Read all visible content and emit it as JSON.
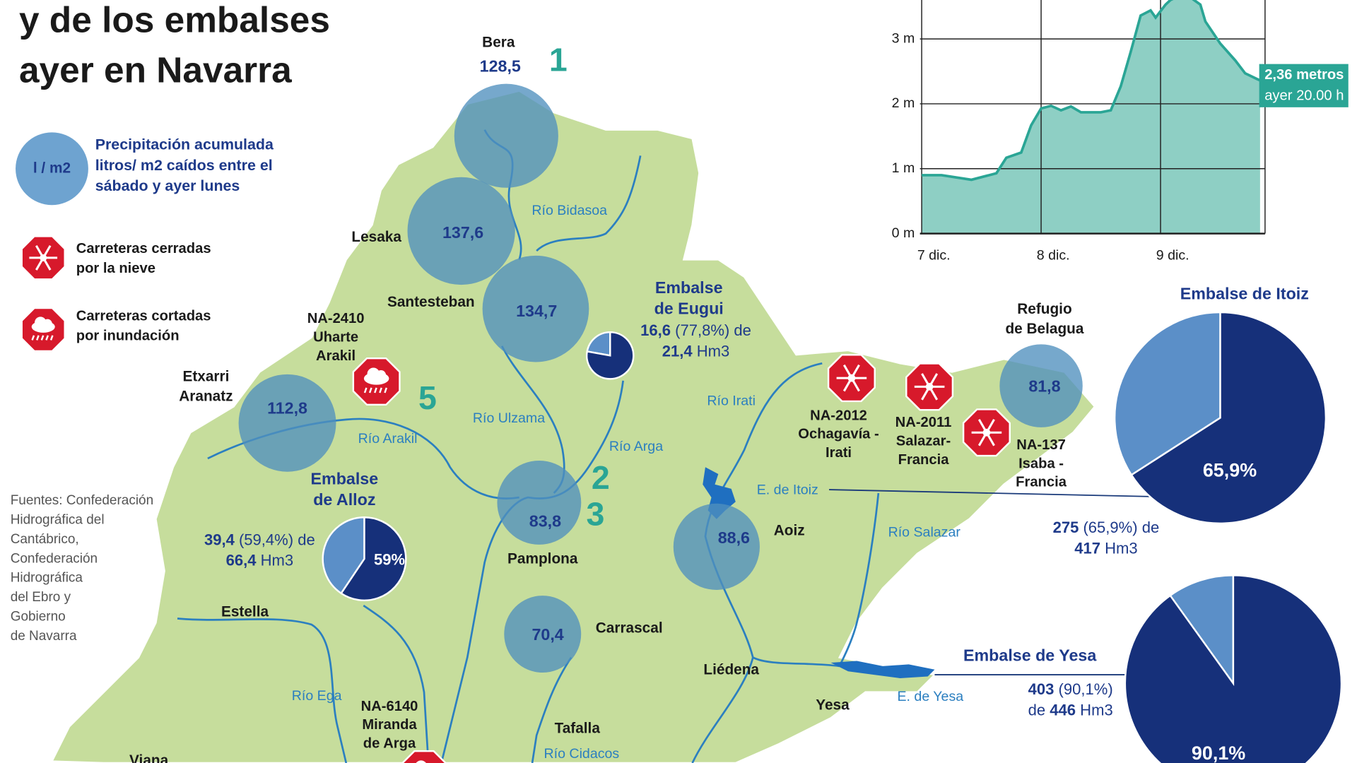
{
  "header": {
    "title_lines": [
      "y de los embalses",
      "ayer en Navarra"
    ]
  },
  "legend": {
    "circle_label": "l / m2",
    "circle_text": [
      "Precipitación acumulada",
      "litros/ m2 caídos entre el",
      "sábado y ayer lunes"
    ],
    "snow_text": [
      "Carreteras cerradas",
      "por la nieve"
    ],
    "flood_text": [
      "Carreteras cortadas",
      "por inundación"
    ]
  },
  "sources": [
    "Fuentes: Confederación",
    "Hidrográfica del",
    "Cantábrico,",
    "Confederación",
    "Hidrográfica",
    "del Ebro y",
    "Gobierno",
    "de Navarra"
  ],
  "stations": [
    {
      "name_lines": [
        "Bera"
      ],
      "value": 128.5,
      "label": "128,5"
    },
    {
      "name_lines": [
        "Lesaka"
      ],
      "value": 137.6,
      "label": "137,6"
    },
    {
      "name_lines": [
        "Santesteban"
      ],
      "value": 134.7,
      "label": "134,7"
    },
    {
      "name_lines": [
        "Etxarri",
        "Aranatz"
      ],
      "value": 112.8,
      "label": "112,8"
    },
    {
      "name_lines": [
        "Pamplona"
      ],
      "value": 83.8,
      "label": "83,8"
    },
    {
      "name_lines": [
        "Aoiz"
      ],
      "value": 88.6,
      "label": "88,6"
    },
    {
      "name_lines": [
        "Carrascal"
      ],
      "value": 70.4,
      "label": "70,4"
    },
    {
      "name_lines": [
        "Refugio",
        "de Belagua"
      ],
      "value": 81.8,
      "label": "81,8"
    }
  ],
  "markers": [
    "1",
    "2",
    "3",
    "5"
  ],
  "roads": [
    {
      "lines": [
        "NA-2410",
        "Uharte",
        "Arakil"
      ],
      "kind": "flood"
    },
    {
      "lines": [
        "NA-2012",
        "Ochagavía -",
        "Irati"
      ],
      "kind": "snow"
    },
    {
      "lines": [
        "NA-2011",
        "Salazar-",
        "Francia"
      ],
      "kind": "snow"
    },
    {
      "lines": [
        "NA-137",
        "Isaba -",
        "Francia"
      ],
      "kind": "snow"
    },
    {
      "lines": [
        "NA-6140",
        "Miranda",
        "de Arga"
      ],
      "kind": "flood"
    }
  ],
  "rivers": [
    "Río Bidasoa",
    "Río Ulzama",
    "Río Arga",
    "Río Arakil",
    "Río Irati",
    "Río Salazar",
    "Río Ega",
    "Río Cidacos",
    "E. de Itoiz",
    "E. de Yesa"
  ],
  "towns": [
    "Estella",
    "Liédena",
    "Yesa",
    "Tafalla",
    "Viana"
  ],
  "reservoirs": [
    {
      "name_lines": [
        "Embalse",
        "de Eugui"
      ],
      "percent": 77.8,
      "lines": [
        [
          {
            "text": "16,6",
            "bold": true
          },
          {
            "text": " (77,8%) de"
          }
        ],
        [
          {
            "text": "21,4",
            "bold": true
          },
          {
            "text": " Hm3"
          }
        ]
      ]
    },
    {
      "name_lines": [
        "Embalse",
        "de Alloz"
      ],
      "percent": 59.4,
      "pie_label": "59%",
      "lines": [
        [
          {
            "text": "39,4",
            "bold": true
          },
          {
            "text": " (59,4%) de"
          }
        ],
        [
          {
            "text": "66,4",
            "bold": true
          },
          {
            "text": " Hm3"
          }
        ]
      ]
    },
    {
      "name_lines": [
        "Embalse de Itoiz"
      ],
      "percent": 65.9,
      "pie_label": "65,9%",
      "lines": [
        [
          {
            "text": "275",
            "bold": true
          },
          {
            "text": " (65,9%) de"
          }
        ],
        [
          {
            "text": "417",
            "bold": true
          },
          {
            "text": " Hm3"
          }
        ]
      ]
    },
    {
      "name_lines": [
        "Embalse de Yesa"
      ],
      "percent": 90.1,
      "pie_label": "90,1%",
      "lines": [
        [
          {
            "text": "403",
            "bold": true
          },
          {
            "text": " (90,1%)"
          }
        ],
        [
          {
            "text": "de "
          },
          {
            "text": "446",
            "bold": true
          },
          {
            "text": " Hm3"
          }
        ]
      ]
    }
  ],
  "chart_data": {
    "type": "line",
    "x": [
      0,
      4,
      10,
      15,
      17,
      20,
      22,
      24,
      26,
      28,
      30,
      32,
      36,
      38,
      40,
      42,
      44,
      46,
      47,
      49,
      50,
      52,
      54,
      56,
      57,
      60,
      63,
      65,
      68
    ],
    "series": [
      {
        "color": "#2aa595",
        "values": [
          0.9,
          0.9,
          0.83,
          0.93,
          1.17,
          1.25,
          1.67,
          1.93,
          1.97,
          1.9,
          1.96,
          1.87,
          1.87,
          1.9,
          2.27,
          2.8,
          3.36,
          3.44,
          3.33,
          3.53,
          3.6,
          3.67,
          3.64,
          3.53,
          3.27,
          2.93,
          2.67,
          2.47,
          2.36
        ]
      }
    ],
    "fill": "#8ecfc4",
    "xlim": [
      0,
      69
    ],
    "xticks": [
      {
        "value": 0,
        "label": "7 dic."
      },
      {
        "value": 24,
        "label": "8 dic."
      },
      {
        "value": 48,
        "label": "9 dic."
      }
    ],
    "ylim": [
      0,
      3.6
    ],
    "yticks": [
      {
        "value": 0,
        "label": "0 m"
      },
      {
        "value": 1,
        "label": "1 m"
      },
      {
        "value": 2,
        "label": "2 m"
      },
      {
        "value": 3,
        "label": "3 m"
      }
    ],
    "grid": true,
    "annotation": [
      "2,36 metros",
      "ayer 20.00 h"
    ]
  }
}
